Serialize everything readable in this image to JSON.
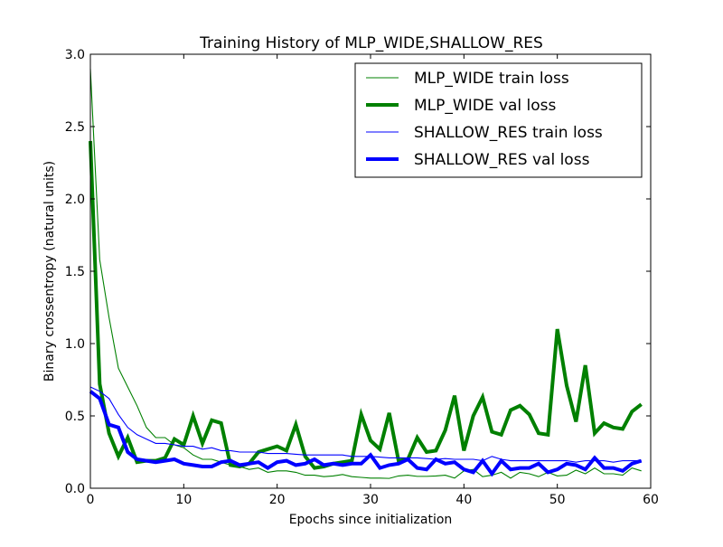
{
  "chart_data": {
    "type": "line",
    "title": "Training History of MLP_WIDE,SHALLOW_RES",
    "xlabel": "Epochs since initialization",
    "ylabel": "Binary crossentropy (natural units)",
    "xlim": [
      0,
      60
    ],
    "ylim": [
      0.0,
      3.0
    ],
    "xticks": [
      "0",
      "10",
      "20",
      "30",
      "40",
      "50",
      "60"
    ],
    "yticks": [
      "0.0",
      "0.5",
      "1.0",
      "1.5",
      "2.0",
      "2.5",
      "3.0"
    ],
    "grid": false,
    "legend_position": "top-right",
    "x": [
      0,
      1,
      2,
      3,
      4,
      5,
      6,
      7,
      8,
      9,
      10,
      11,
      12,
      13,
      14,
      15,
      16,
      17,
      18,
      19,
      20,
      21,
      22,
      23,
      24,
      25,
      26,
      27,
      28,
      29,
      30,
      31,
      32,
      33,
      34,
      35,
      36,
      37,
      38,
      39,
      40,
      41,
      42,
      43,
      44,
      45,
      46,
      47,
      48,
      49,
      50,
      51,
      52,
      53,
      54,
      55,
      56,
      57,
      58,
      59
    ],
    "series": [
      {
        "name": "MLP_WIDE train loss",
        "color": "#008000",
        "width": "thin",
        "values": [
          2.9,
          1.58,
          1.18,
          0.83,
          0.7,
          0.57,
          0.42,
          0.35,
          0.35,
          0.3,
          0.28,
          0.23,
          0.2,
          0.2,
          0.18,
          0.16,
          0.15,
          0.13,
          0.14,
          0.11,
          0.12,
          0.12,
          0.11,
          0.09,
          0.09,
          0.08,
          0.085,
          0.095,
          0.08,
          0.075,
          0.07,
          0.07,
          0.068,
          0.085,
          0.09,
          0.082,
          0.082,
          0.085,
          0.09,
          0.07,
          0.12,
          0.13,
          0.08,
          0.09,
          0.11,
          0.07,
          0.11,
          0.1,
          0.08,
          0.11,
          0.085,
          0.09,
          0.125,
          0.1,
          0.14,
          0.1,
          0.1,
          0.09,
          0.14,
          0.12
        ]
      },
      {
        "name": "MLP_WIDE val loss",
        "color": "#008000",
        "width": "thick",
        "values": [
          2.4,
          0.72,
          0.38,
          0.22,
          0.35,
          0.18,
          0.19,
          0.19,
          0.21,
          0.34,
          0.3,
          0.5,
          0.31,
          0.47,
          0.45,
          0.16,
          0.15,
          0.17,
          0.25,
          0.27,
          0.29,
          0.26,
          0.44,
          0.22,
          0.14,
          0.15,
          0.17,
          0.18,
          0.19,
          0.51,
          0.33,
          0.27,
          0.52,
          0.19,
          0.2,
          0.35,
          0.25,
          0.26,
          0.4,
          0.64,
          0.26,
          0.5,
          0.63,
          0.39,
          0.37,
          0.54,
          0.57,
          0.51,
          0.38,
          0.37,
          1.1,
          0.71,
          0.46,
          0.85,
          0.38,
          0.45,
          0.42,
          0.41,
          0.53,
          0.58
        ]
      },
      {
        "name": "SHALLOW_RES train loss",
        "color": "#0000ff",
        "width": "thin",
        "values": [
          0.7,
          0.67,
          0.62,
          0.51,
          0.42,
          0.37,
          0.34,
          0.31,
          0.31,
          0.3,
          0.29,
          0.29,
          0.27,
          0.28,
          0.26,
          0.26,
          0.25,
          0.25,
          0.25,
          0.24,
          0.24,
          0.24,
          0.235,
          0.23,
          0.23,
          0.23,
          0.23,
          0.23,
          0.22,
          0.22,
          0.22,
          0.215,
          0.21,
          0.21,
          0.21,
          0.21,
          0.205,
          0.2,
          0.205,
          0.2,
          0.2,
          0.2,
          0.19,
          0.22,
          0.2,
          0.19,
          0.19,
          0.19,
          0.19,
          0.19,
          0.19,
          0.19,
          0.18,
          0.19,
          0.19,
          0.19,
          0.18,
          0.19,
          0.19,
          0.19
        ]
      },
      {
        "name": "SHALLOW_RES val loss",
        "color": "#0000ff",
        "width": "thick",
        "values": [
          0.67,
          0.62,
          0.44,
          0.42,
          0.25,
          0.2,
          0.19,
          0.18,
          0.19,
          0.2,
          0.17,
          0.16,
          0.15,
          0.15,
          0.18,
          0.19,
          0.16,
          0.17,
          0.18,
          0.14,
          0.18,
          0.19,
          0.16,
          0.17,
          0.2,
          0.16,
          0.17,
          0.16,
          0.17,
          0.17,
          0.23,
          0.14,
          0.16,
          0.17,
          0.2,
          0.14,
          0.13,
          0.2,
          0.17,
          0.18,
          0.13,
          0.11,
          0.19,
          0.1,
          0.19,
          0.13,
          0.14,
          0.14,
          0.17,
          0.11,
          0.13,
          0.17,
          0.16,
          0.13,
          0.21,
          0.14,
          0.14,
          0.12,
          0.17,
          0.19
        ]
      }
    ]
  }
}
